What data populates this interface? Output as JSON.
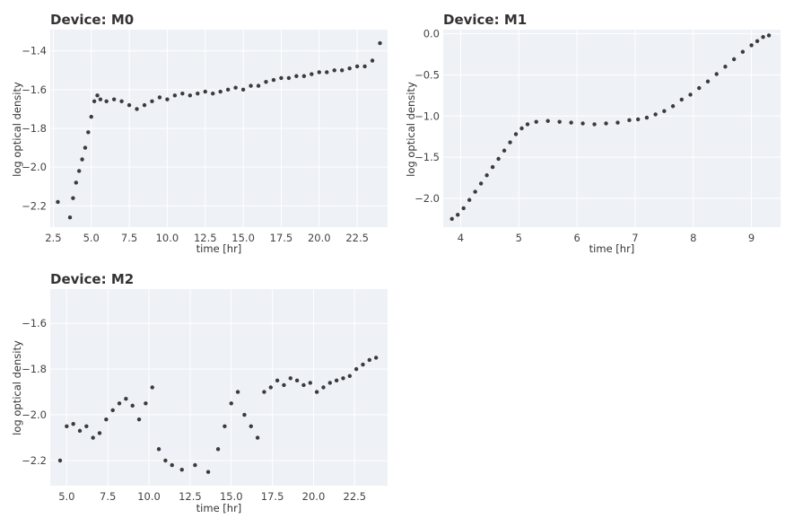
{
  "chart_data": [
    {
      "type": "scatter",
      "title": "Device: M0",
      "xlabel": "time [hr]",
      "ylabel": "log optical density",
      "xlim": [
        2.3,
        24.5
      ],
      "ylim": [
        -2.31,
        -1.29
      ],
      "xticks": [
        2.5,
        5.0,
        7.5,
        10.0,
        12.5,
        15.0,
        17.5,
        20.0,
        22.5
      ],
      "xtick_labels": [
        "2.5",
        "5.0",
        "7.5",
        "10.0",
        "12.5",
        "15.0",
        "17.5",
        "20.0",
        "22.5"
      ],
      "yticks": [
        -1.4,
        -1.6,
        -1.8,
        -2.0,
        -2.2
      ],
      "ytick_labels": [
        "−1.4",
        "−1.6",
        "−1.8",
        "−2.0",
        "−2.2"
      ],
      "grid": true,
      "series": [
        {
          "x": [
            2.8,
            3.6,
            3.8,
            4.0,
            4.2,
            4.4,
            4.6,
            4.8,
            5.0,
            5.2,
            5.4,
            5.6,
            6.0,
            6.5,
            7.0,
            7.5,
            8.0,
            8.5,
            9.0,
            9.5,
            10.0,
            10.5,
            11.0,
            11.5,
            12.0,
            12.5,
            13.0,
            13.5,
            14.0,
            14.5,
            15.0,
            15.5,
            16.0,
            16.5,
            17.0,
            17.5,
            18.0,
            18.5,
            19.0,
            19.5,
            20.0,
            20.5,
            21.0,
            21.5,
            22.0,
            22.5,
            23.0,
            23.5,
            24.0
          ],
          "y": [
            -2.18,
            -2.26,
            -2.16,
            -2.08,
            -2.02,
            -1.96,
            -1.9,
            -1.82,
            -1.74,
            -1.66,
            -1.63,
            -1.65,
            -1.66,
            -1.65,
            -1.66,
            -1.68,
            -1.7,
            -1.68,
            -1.66,
            -1.64,
            -1.65,
            -1.63,
            -1.62,
            -1.63,
            -1.62,
            -1.61,
            -1.62,
            -1.61,
            -1.6,
            -1.59,
            -1.6,
            -1.58,
            -1.58,
            -1.56,
            -1.55,
            -1.54,
            -1.54,
            -1.53,
            -1.53,
            -1.52,
            -1.51,
            -1.51,
            -1.5,
            -1.5,
            -1.49,
            -1.48,
            -1.48,
            -1.45,
            -1.36
          ]
        }
      ]
    },
    {
      "type": "scatter",
      "title": "Device: M1",
      "xlabel": "time [hr]",
      "ylabel": "log optical density",
      "xlim": [
        3.7,
        9.5
      ],
      "ylim": [
        -2.35,
        0.05
      ],
      "xticks": [
        4,
        5,
        6,
        7,
        8,
        9
      ],
      "xtick_labels": [
        "4",
        "5",
        "6",
        "7",
        "8",
        "9"
      ],
      "yticks": [
        0.0,
        -0.5,
        -1.0,
        -1.5,
        -2.0
      ],
      "ytick_labels": [
        "0.0",
        "−0.5",
        "−1.0",
        "−1.5",
        "−2.0"
      ],
      "grid": true,
      "series": [
        {
          "x": [
            3.85,
            3.95,
            4.05,
            4.15,
            4.25,
            4.35,
            4.45,
            4.55,
            4.65,
            4.75,
            4.85,
            4.95,
            5.05,
            5.15,
            5.3,
            5.5,
            5.7,
            5.9,
            6.1,
            6.3,
            6.5,
            6.7,
            6.9,
            7.05,
            7.2,
            7.35,
            7.5,
            7.65,
            7.8,
            7.95,
            8.1,
            8.25,
            8.4,
            8.55,
            8.7,
            8.85,
            9.0,
            9.1,
            9.2,
            9.3
          ],
          "y": [
            -2.25,
            -2.2,
            -2.12,
            -2.02,
            -1.92,
            -1.82,
            -1.72,
            -1.62,
            -1.52,
            -1.42,
            -1.32,
            -1.22,
            -1.15,
            -1.1,
            -1.07,
            -1.06,
            -1.07,
            -1.08,
            -1.09,
            -1.1,
            -1.09,
            -1.08,
            -1.05,
            -1.04,
            -1.02,
            -0.98,
            -0.94,
            -0.88,
            -0.8,
            -0.74,
            -0.66,
            -0.58,
            -0.49,
            -0.4,
            -0.31,
            -0.22,
            -0.14,
            -0.09,
            -0.04,
            -0.02
          ]
        }
      ]
    },
    {
      "type": "scatter",
      "title": "Device: M2",
      "xlabel": "time [hr]",
      "ylabel": "log optical density",
      "xlim": [
        4.0,
        24.5
      ],
      "ylim": [
        -2.31,
        -1.45
      ],
      "xticks": [
        5.0,
        7.5,
        10.0,
        12.5,
        15.0,
        17.5,
        20.0,
        22.5
      ],
      "xtick_labels": [
        "5.0",
        "7.5",
        "10.0",
        "12.5",
        "15.0",
        "17.5",
        "20.0",
        "22.5"
      ],
      "yticks": [
        -1.6,
        -1.8,
        -2.0,
        -2.2
      ],
      "ytick_labels": [
        "−1.6",
        "−1.8",
        "−2.0",
        "−2.2"
      ],
      "grid": true,
      "series": [
        {
          "x": [
            4.6,
            5.0,
            5.4,
            5.8,
            6.2,
            6.6,
            7.0,
            7.4,
            7.8,
            8.2,
            8.6,
            9.0,
            9.4,
            9.8,
            10.2,
            10.6,
            11.0,
            11.4,
            12.0,
            12.8,
            13.6,
            14.2,
            14.6,
            15.0,
            15.4,
            15.8,
            16.2,
            16.6,
            17.0,
            17.4,
            17.8,
            18.2,
            18.6,
            19.0,
            19.4,
            19.8,
            20.2,
            20.6,
            21.0,
            21.4,
            21.8,
            22.2,
            22.6,
            23.0,
            23.4,
            23.8
          ],
          "y": [
            -2.2,
            -2.05,
            -2.04,
            -2.07,
            -2.05,
            -2.1,
            -2.08,
            -2.02,
            -1.98,
            -1.95,
            -1.93,
            -1.96,
            -2.02,
            -1.95,
            -1.88,
            -2.15,
            -2.2,
            -2.22,
            -2.24,
            -2.22,
            -2.25,
            -2.15,
            -2.05,
            -1.95,
            -1.9,
            -2.0,
            -2.05,
            -2.1,
            -1.9,
            -1.88,
            -1.85,
            -1.87,
            -1.84,
            -1.85,
            -1.87,
            -1.86,
            -1.9,
            -1.88,
            -1.86,
            -1.85,
            -1.84,
            -1.83,
            -1.8,
            -1.78,
            -1.76,
            -1.75
          ]
        }
      ]
    }
  ]
}
